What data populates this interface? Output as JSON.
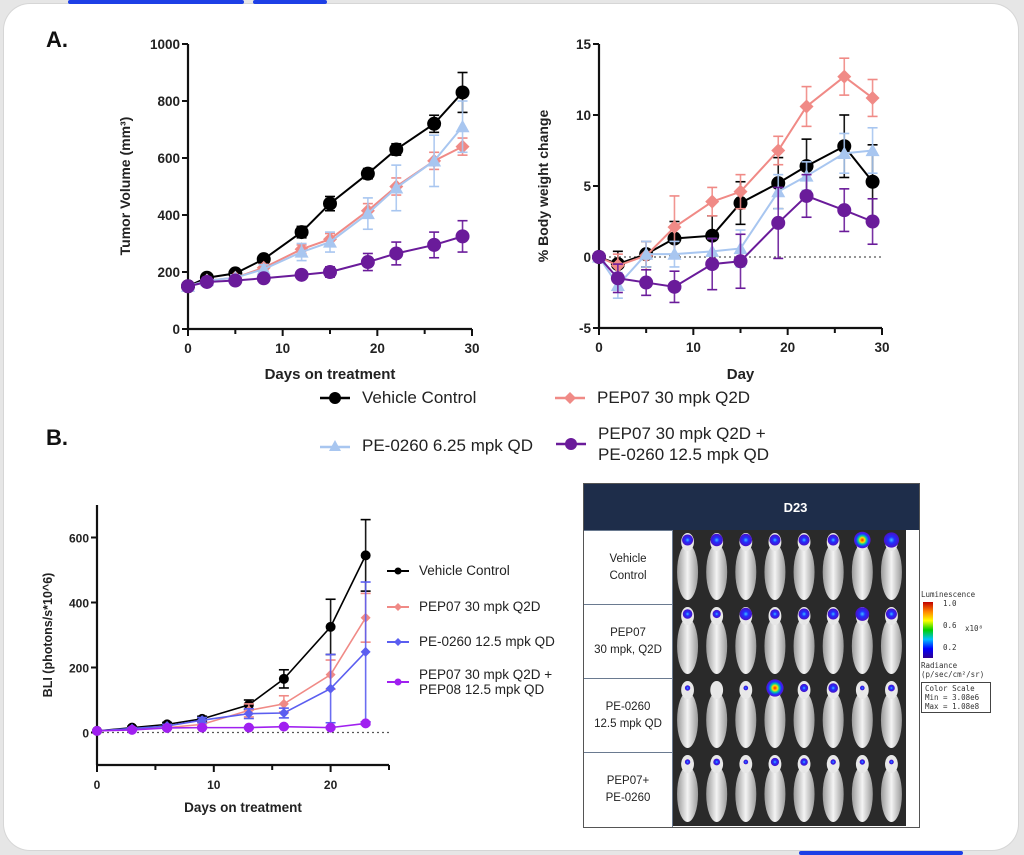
{
  "panels": {
    "a_label": "A.",
    "b_label": "B."
  },
  "colors": {
    "vehicle": "#000000",
    "pep07": "#f08a86",
    "pe0260_low": "#a8c6f0",
    "combo": "#6a1b9a",
    "b_vehicle": "#000000",
    "b_pep07": "#f08a86",
    "b_pe0260": "#5b5ef0",
    "b_combo": "#a020f0",
    "table_header": "#1e2d4a",
    "tab_indicator": "#1d3fe6"
  },
  "legend_a": [
    {
      "label": "Vehicle Control",
      "marker": "circle",
      "color": "#000000"
    },
    {
      "label": "PEP07 30 mpk Q2D",
      "marker": "diamond",
      "color": "#f08a86"
    },
    {
      "label": "PE-0260 6.25 mpk QD",
      "marker": "triangle",
      "color": "#a8c6f0"
    },
    {
      "label": "PEP07 30 mpk Q2D +\nPE-0260 12.5 mpk QD",
      "line1": "PEP07 30 mpk Q2D +",
      "line2": "PE-0260 12.5 mpk QD",
      "marker": "circle",
      "color": "#6a1b9a"
    }
  ],
  "legend_b": [
    {
      "label": "Vehicle Control",
      "color": "#000000"
    },
    {
      "label": "PEP07 30 mpk Q2D",
      "color": "#f08a86"
    },
    {
      "label": "PE-0260 12.5 mpk QD",
      "color": "#5b5ef0"
    },
    {
      "label": "PEP07 30 mpk Q2D +\nPEP08 12.5 mpk QD",
      "line1": "PEP07 30 mpk Q2D +",
      "line2": "PEP08 12.5 mpk QD",
      "color": "#a020f0"
    }
  ],
  "chart_data": [
    {
      "id": "tumor-volume",
      "type": "line",
      "title": "",
      "xlabel": "Days on treatment",
      "ylabel": "Tumor Volume (mm³)",
      "xlim": [
        0,
        30
      ],
      "ylim": [
        0,
        1000
      ],
      "xticks": [
        0,
        10,
        20,
        30
      ],
      "yticks": [
        0,
        200,
        400,
        600,
        800,
        1000
      ],
      "grid": false,
      "series": [
        {
          "name": "Vehicle Control",
          "marker": "circle",
          "color": "#000000",
          "x": [
            0,
            2,
            5,
            8,
            12,
            15,
            19,
            22,
            26,
            29
          ],
          "y": [
            150,
            180,
            195,
            245,
            340,
            440,
            545,
            630,
            720,
            830
          ],
          "err": [
            10,
            10,
            10,
            12,
            20,
            25,
            18,
            20,
            30,
            70
          ]
        },
        {
          "name": "PEP07 30 mpk Q2D",
          "marker": "diamond",
          "color": "#f08a86",
          "x": [
            0,
            2,
            5,
            8,
            12,
            15,
            19,
            22,
            26,
            29
          ],
          "y": [
            150,
            170,
            180,
            215,
            280,
            315,
            415,
            500,
            590,
            640
          ],
          "err": [
            10,
            10,
            10,
            12,
            15,
            20,
            25,
            30,
            30,
            30
          ]
        },
        {
          "name": "PE-0260 6.25 mpk QD",
          "marker": "triangle",
          "color": "#a8c6f0",
          "x": [
            0,
            2,
            5,
            8,
            12,
            15,
            19,
            22,
            26,
            29
          ],
          "y": [
            150,
            170,
            180,
            210,
            270,
            305,
            405,
            495,
            590,
            710
          ],
          "err": [
            10,
            10,
            10,
            15,
            30,
            35,
            55,
            80,
            90,
            90
          ]
        },
        {
          "name": "PEP07 30 mpk Q2D + PE-0260 12.5 mpk QD",
          "marker": "circle",
          "color": "#6a1b9a",
          "x": [
            0,
            2,
            5,
            8,
            12,
            15,
            19,
            22,
            26,
            29
          ],
          "y": [
            150,
            165,
            170,
            178,
            190,
            200,
            235,
            265,
            295,
            325
          ],
          "err": [
            8,
            8,
            8,
            10,
            10,
            18,
            30,
            40,
            45,
            55
          ]
        }
      ]
    },
    {
      "id": "body-weight",
      "type": "line",
      "title": "",
      "xlabel": "Day",
      "ylabel": "% Body weight change",
      "xlim": [
        0,
        30
      ],
      "ylim": [
        -5,
        15
      ],
      "xticks": [
        0,
        10,
        20,
        30
      ],
      "yticks": [
        -5,
        0,
        5,
        10,
        15
      ],
      "grid": false,
      "reference_line": 0,
      "series": [
        {
          "name": "Vehicle Control",
          "marker": "circle",
          "color": "#000000",
          "x": [
            0,
            2,
            5,
            8,
            12,
            15,
            19,
            22,
            26,
            29
          ],
          "y": [
            0,
            -0.5,
            0.2,
            1.3,
            1.5,
            3.8,
            5.2,
            6.4,
            7.8,
            5.3
          ],
          "err": [
            0,
            0.9,
            0.9,
            1.2,
            1.4,
            1.5,
            1.8,
            1.9,
            2.2,
            2.6
          ]
        },
        {
          "name": "PEP07 30 mpk Q2D",
          "marker": "diamond",
          "color": "#f08a86",
          "x": [
            0,
            2,
            5,
            8,
            12,
            15,
            19,
            22,
            26,
            29
          ],
          "y": [
            0,
            -0.6,
            0.1,
            2.1,
            3.9,
            4.6,
            7.5,
            10.6,
            12.7,
            11.2
          ],
          "err": [
            0,
            0.8,
            1.0,
            2.2,
            1.0,
            1.2,
            1.0,
            1.4,
            1.3,
            1.3
          ]
        },
        {
          "name": "PE-0260 6.25 mpk QD",
          "marker": "triangle",
          "color": "#a8c6f0",
          "x": [
            0,
            2,
            5,
            8,
            12,
            15,
            19,
            22,
            26,
            29
          ],
          "y": [
            0,
            -2.0,
            0.2,
            0.2,
            0.4,
            0.6,
            4.6,
            5.7,
            7.3,
            7.5
          ],
          "err": [
            0,
            0.9,
            0.9,
            0.9,
            0.9,
            1.3,
            1.2,
            1.0,
            1.4,
            1.6
          ]
        },
        {
          "name": "PEP07 30 mpk Q2D + PE-0260 12.5 mpk QD",
          "marker": "circle",
          "color": "#6a1b9a",
          "x": [
            0,
            2,
            5,
            8,
            12,
            15,
            19,
            22,
            26,
            29
          ],
          "y": [
            0,
            -1.5,
            -1.8,
            -2.1,
            -0.5,
            -0.3,
            2.4,
            4.3,
            3.3,
            2.5
          ],
          "err": [
            0,
            1.0,
            0.9,
            1.1,
            1.8,
            1.9,
            2.5,
            1.5,
            1.5,
            1.6
          ]
        }
      ]
    },
    {
      "id": "bli",
      "type": "line",
      "title": "",
      "xlabel": "Days on treatment",
      "ylabel": "BLI (photons/s*10^6)",
      "xlim": [
        0,
        25
      ],
      "ylim": [
        -100,
        700
      ],
      "xticks": [
        0,
        10,
        20
      ],
      "yticks": [
        0,
        200,
        400,
        600
      ],
      "grid": false,
      "reference_line": 0,
      "series": [
        {
          "name": "Vehicle Control",
          "color": "#000000",
          "x": [
            0,
            3,
            6,
            9,
            13,
            16,
            20,
            23
          ],
          "y": [
            5,
            15,
            25,
            42,
            85,
            165,
            325,
            545
          ],
          "err": [
            2,
            4,
            6,
            8,
            15,
            28,
            85,
            110
          ]
        },
        {
          "name": "PEP07 30 mpk Q2D",
          "color": "#f08a86",
          "x": [
            0,
            3,
            6,
            9,
            13,
            16,
            20,
            23
          ],
          "y": [
            5,
            10,
            15,
            25,
            68,
            88,
            178,
            353
          ],
          "err": [
            2,
            3,
            4,
            6,
            20,
            25,
            45,
            75
          ]
        },
        {
          "name": "PE-0260 12.5 mpk QD",
          "color": "#5b5ef0",
          "x": [
            0,
            3,
            6,
            9,
            13,
            16,
            20,
            23
          ],
          "y": [
            5,
            12,
            20,
            38,
            58,
            60,
            135,
            248
          ],
          "err": [
            2,
            3,
            5,
            8,
            15,
            15,
            105,
            215
          ]
        },
        {
          "name": "PEP07 30 mpk Q2D + PEP08 12.5 mpk QD",
          "color": "#a020f0",
          "x": [
            0,
            3,
            6,
            9,
            13,
            16,
            20,
            23
          ],
          "y": [
            5,
            8,
            14,
            15,
            15,
            18,
            15,
            28
          ],
          "err": [
            1,
            2,
            3,
            3,
            3,
            3,
            3,
            4
          ]
        }
      ]
    }
  ],
  "bli_table": {
    "header": "D23",
    "rows": [
      {
        "label": "Vehicle\nControl",
        "signal": [
          0.5,
          0.6,
          0.6,
          0.5,
          0.5,
          0.5,
          0.9,
          0.8
        ]
      },
      {
        "label": "PEP07\n30 mpk, Q2D",
        "signal": [
          0.4,
          0.3,
          0.6,
          0.4,
          0.5,
          0.5,
          0.7,
          0.5
        ]
      },
      {
        "label": "PE-0260\n12.5 mpk QD",
        "signal": [
          0.1,
          0.0,
          0.05,
          0.95,
          0.3,
          0.4,
          0.05,
          0.2
        ]
      },
      {
        "label": "PEP07+\nPE-0260",
        "signal": [
          0.1,
          0.2,
          0.05,
          0.3,
          0.25,
          0.1,
          0.1,
          0.05
        ]
      }
    ]
  },
  "color_scale": {
    "title": "Luminescence",
    "ticks": [
      "1.0",
      "0.6",
      "0.2"
    ],
    "multiplier": "x10⁸",
    "unit_label": "Radiance",
    "unit": "(p/sec/cm²/sr)",
    "box_title": "Color Scale",
    "min": "Min = 3.08e6",
    "max": "Max = 1.08e8"
  }
}
